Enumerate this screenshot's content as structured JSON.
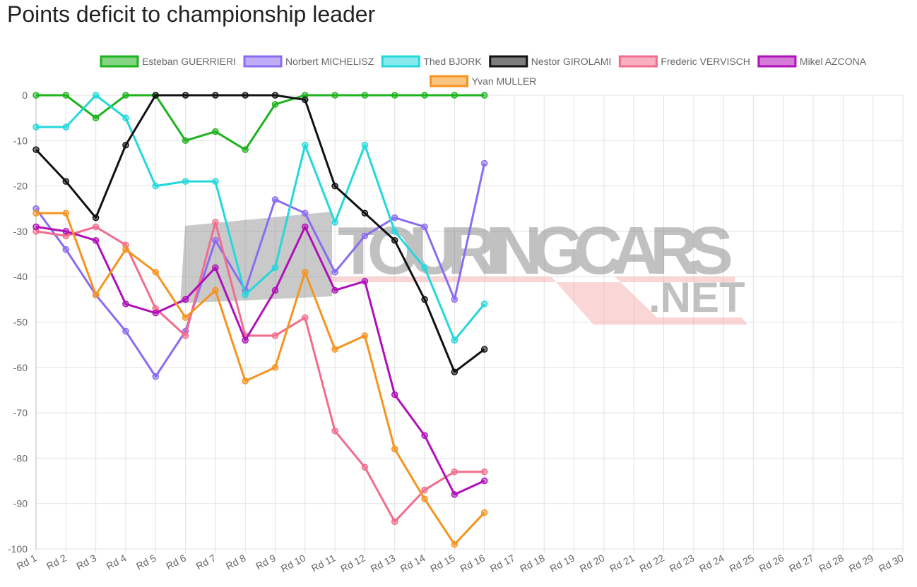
{
  "chart_data": {
    "type": "line",
    "title": "Points deficit to championship leader",
    "watermark": [
      "TOURINGCARS",
      ".NET"
    ],
    "categories": [
      "Rd 1",
      "Rd 2",
      "Rd 3",
      "Rd 4",
      "Rd 5",
      "Rd 6",
      "Rd 7",
      "Rd 8",
      "Rd 9",
      "Rd 10",
      "Rd 11",
      "Rd 12",
      "Rd 13",
      "Rd 14",
      "Rd 15",
      "Rd 16",
      "Rd 17",
      "Rd 18",
      "Rd 19",
      "Rd 20",
      "Rd 21",
      "Rd 22",
      "Rd 23",
      "Rd 24",
      "Rd 25",
      "Rd 26",
      "Rd 27",
      "Rd 28",
      "Rd 29",
      "Rd 30"
    ],
    "series": [
      {
        "name": "Esteban GUERRIERI",
        "color": "#1db31d",
        "values": [
          0,
          0,
          -5,
          0,
          0,
          -10,
          -8,
          -12,
          -2,
          0,
          0,
          0,
          0,
          0,
          0,
          0,
          null,
          null,
          null,
          null,
          null,
          null,
          null,
          null,
          null,
          null,
          null,
          null,
          null,
          null
        ]
      },
      {
        "name": "Norbert MICHELISZ",
        "color": "#8b6cf0",
        "values": [
          -25,
          -34,
          -44,
          -52,
          -62,
          -52,
          -32,
          -43,
          -23,
          -26,
          -39,
          -31,
          -27,
          -29,
          -45,
          -15,
          null,
          null,
          null,
          null,
          null,
          null,
          null,
          null,
          null,
          null,
          null,
          null,
          null,
          null
        ]
      },
      {
        "name": "Thed BJORK",
        "color": "#22d8dc",
        "values": [
          -7,
          -7,
          0,
          -5,
          -20,
          -19,
          -19,
          -44,
          -38,
          -11,
          -28,
          -11,
          -30,
          -38,
          -54,
          -46,
          null,
          null,
          null,
          null,
          null,
          null,
          null,
          null,
          null,
          null,
          null,
          null,
          null,
          null
        ]
      },
      {
        "name": "Nestor GIROLAMI",
        "color": "#111111",
        "values": [
          -12,
          -19,
          -27,
          -11,
          0,
          0,
          0,
          0,
          0,
          -1,
          -20,
          -26,
          -32,
          -45,
          -61,
          -56,
          null,
          null,
          null,
          null,
          null,
          null,
          null,
          null,
          null,
          null,
          null,
          null,
          null,
          null
        ]
      },
      {
        "name": "Frederic VERVISCH",
        "color": "#f26d8d",
        "values": [
          -30,
          -31,
          -29,
          -33,
          -47,
          -53,
          -28,
          -53,
          -53,
          -49,
          -74,
          -82,
          -94,
          -87,
          -83,
          -83,
          null,
          null,
          null,
          null,
          null,
          null,
          null,
          null,
          null,
          null,
          null,
          null,
          null,
          null
        ]
      },
      {
        "name": "Mikel AZCONA",
        "color": "#b010b8",
        "values": [
          -29,
          -30,
          -32,
          -46,
          -48,
          -45,
          -38,
          -54,
          -43,
          -29,
          -43,
          -41,
          -66,
          -75,
          -88,
          -85,
          null,
          null,
          null,
          null,
          null,
          null,
          null,
          null,
          null,
          null,
          null,
          null,
          null,
          null
        ]
      },
      {
        "name": "Yvan MULLER",
        "color": "#f5941e",
        "values": [
          -26,
          -26,
          -44,
          -34,
          -39,
          -49,
          -43,
          -63,
          -60,
          -39,
          -56,
          -53,
          -78,
          -89,
          -99,
          -92,
          null,
          null,
          null,
          null,
          null,
          null,
          null,
          null,
          null,
          null,
          null,
          null,
          null,
          null
        ]
      }
    ],
    "ylim": [
      -100,
      0
    ],
    "yticks": [
      0,
      -10,
      -20,
      -30,
      -40,
      -50,
      -60,
      -70,
      -80,
      -90,
      -100
    ],
    "grid": true,
    "legend": "top"
  }
}
